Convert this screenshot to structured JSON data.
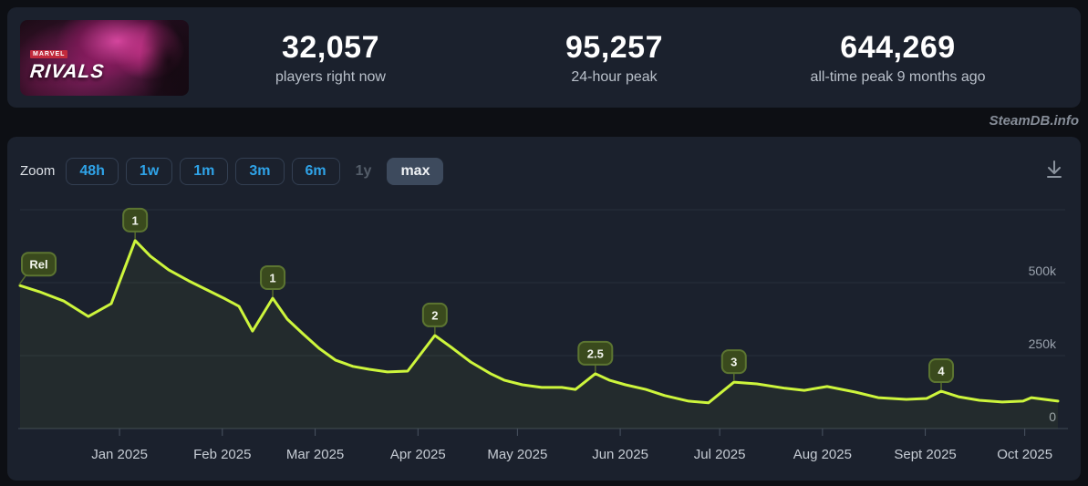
{
  "header": {
    "banner": {
      "marvel": "MARVEL",
      "rivals": "RIVALS"
    },
    "stats": [
      {
        "value": "32,057",
        "label": "players right now"
      },
      {
        "value": "95,257",
        "label": "24-hour peak"
      },
      {
        "value": "644,269",
        "label": "all-time peak 9 months ago"
      }
    ]
  },
  "watermark": "SteamDB.info",
  "toolbar": {
    "zoom_label": "Zoom",
    "ranges": [
      {
        "label": "48h",
        "state": "enabled"
      },
      {
        "label": "1w",
        "state": "enabled"
      },
      {
        "label": "1m",
        "state": "enabled"
      },
      {
        "label": "3m",
        "state": "enabled"
      },
      {
        "label": "6m",
        "state": "enabled"
      },
      {
        "label": "1y",
        "state": "disabled"
      },
      {
        "label": "max",
        "state": "selected"
      }
    ],
    "download_icon": "download-icon"
  },
  "colors": {
    "page_bg": "#0d0f14",
    "panel_bg": "#1b212d",
    "accent_blue": "#2fa3e8",
    "line": "#cdf53c",
    "flag_bg": "#3a4a1d",
    "flag_border": "#5c7531"
  },
  "chart_data": {
    "type": "line",
    "title": "Marvel Rivals concurrent players (max range)",
    "x_unit": "days since 2024-12-05",
    "xlim": [
      0,
      313
    ],
    "ylim": [
      0,
      750000
    ],
    "grid": true,
    "legend": "none",
    "y_ticks": [
      {
        "value": 0,
        "label": "0"
      },
      {
        "value": 250000,
        "label": "250k"
      },
      {
        "value": 500000,
        "label": "500k"
      }
    ],
    "y_gridlines": [
      0,
      250000,
      500000,
      750000
    ],
    "x_ticks": [
      {
        "day": 30,
        "label": "Jan 2025"
      },
      {
        "day": 61,
        "label": "Feb 2025"
      },
      {
        "day": 89,
        "label": "Mar 2025"
      },
      {
        "day": 120,
        "label": "Apr 2025"
      },
      {
        "day": 150,
        "label": "May 2025"
      },
      {
        "day": 181,
        "label": "Jun 2025"
      },
      {
        "day": 211,
        "label": "Jul 2025"
      },
      {
        "day": 242,
        "label": "Aug 2025"
      },
      {
        "day": 273,
        "label": "Sept 2025"
      },
      {
        "day": 303,
        "label": "Oct 2025"
      }
    ],
    "series": [
      {
        "name": "Players",
        "points": [
          [
            0,
            490000
          ],
          [
            5.8,
            469000
          ],
          [
            13.2,
            437000
          ],
          [
            20.6,
            384000
          ],
          [
            27.5,
            428000
          ],
          [
            34.7,
            644269
          ],
          [
            39.3,
            591000
          ],
          [
            44.8,
            544000
          ],
          [
            50.9,
            506000
          ],
          [
            56.4,
            475000
          ],
          [
            61.9,
            444000
          ],
          [
            66.0,
            419000
          ],
          [
            70.1,
            334000
          ],
          [
            76.2,
            447000
          ],
          [
            80.6,
            375000
          ],
          [
            85.3,
            325000
          ],
          [
            90.2,
            275000
          ],
          [
            95.2,
            234000
          ],
          [
            100.4,
            213000
          ],
          [
            105.3,
            203000
          ],
          [
            110.8,
            194000
          ],
          [
            116.9,
            197000
          ],
          [
            125.1,
            319000
          ],
          [
            130.1,
            278000
          ],
          [
            135.9,
            228000
          ],
          [
            141.9,
            188000
          ],
          [
            146.0,
            166000
          ],
          [
            151.5,
            150000
          ],
          [
            157.3,
            141000
          ],
          [
            163.4,
            141000
          ],
          [
            167.5,
            134000
          ],
          [
            173.5,
            188000
          ],
          [
            177.7,
            166000
          ],
          [
            182.6,
            150000
          ],
          [
            188.7,
            134000
          ],
          [
            194.4,
            113000
          ],
          [
            201.6,
            94000
          ],
          [
            207.6,
            88000
          ],
          [
            215.3,
            159000
          ],
          [
            222.2,
            153000
          ],
          [
            230.7,
            138000
          ],
          [
            236.5,
            131000
          ],
          [
            243.4,
            144000
          ],
          [
            251.9,
            125000
          ],
          [
            258.8,
            106000
          ],
          [
            267.3,
            100000
          ],
          [
            273.4,
            103000
          ],
          [
            277.8,
            128000
          ],
          [
            283.0,
            109000
          ],
          [
            289.3,
            97000
          ],
          [
            296.2,
            91000
          ],
          [
            302.5,
            94000
          ],
          [
            305.0,
            106000
          ],
          [
            313.0,
            94000
          ]
        ]
      }
    ],
    "annotations": [
      {
        "label": "Rel",
        "day": 0,
        "value": 490000
      },
      {
        "label": "1",
        "day": 34.7,
        "value": 644269
      },
      {
        "label": "1",
        "day": 76.2,
        "value": 447000
      },
      {
        "label": "2",
        "day": 125.1,
        "value": 319000
      },
      {
        "label": "2.5",
        "day": 173.5,
        "value": 188000
      },
      {
        "label": "3",
        "day": 215.3,
        "value": 159000
      },
      {
        "label": "4",
        "day": 277.8,
        "value": 128000
      }
    ]
  }
}
